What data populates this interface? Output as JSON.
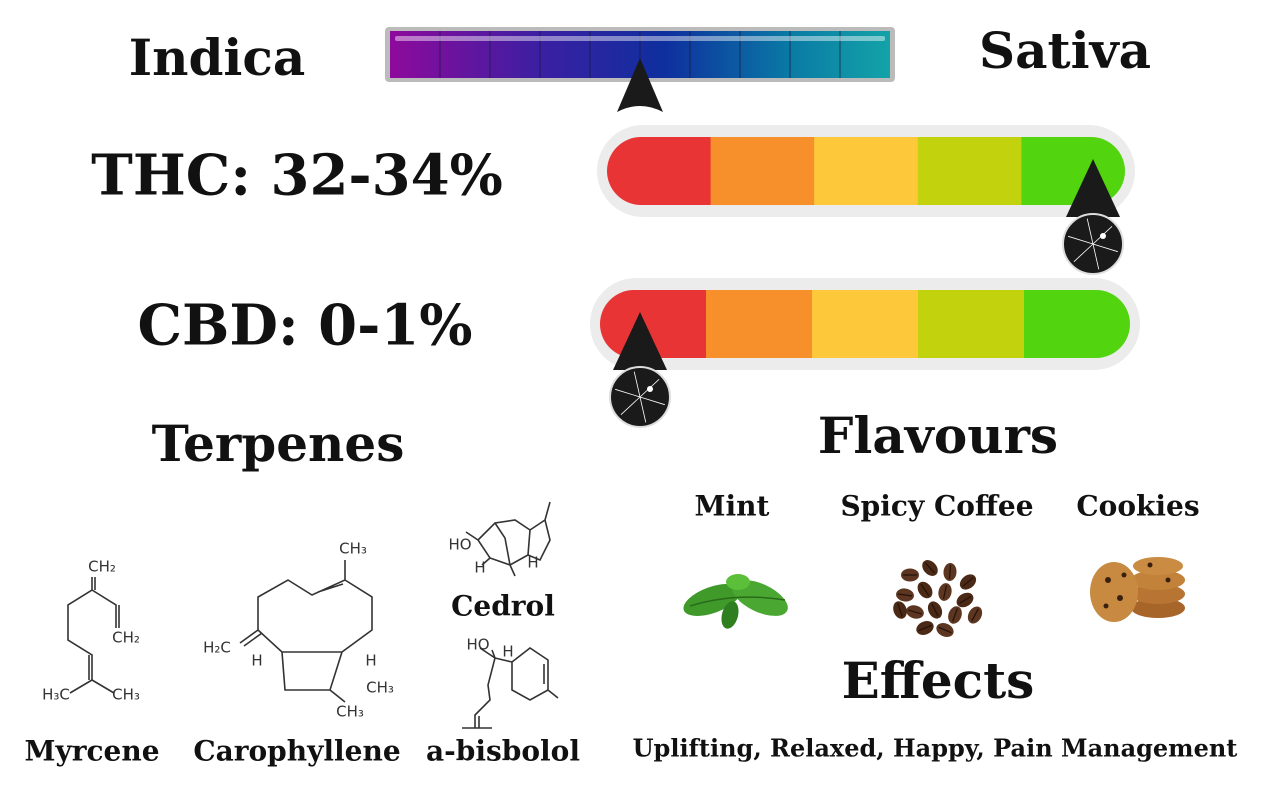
{
  "scale": {
    "left": "Indica",
    "right": "Sativa"
  },
  "potency": [
    {
      "label": "THC: 32-34%"
    },
    {
      "label": "CBD: 0-1%"
    }
  ],
  "terpenes": {
    "title": "Terpenes",
    "items": [
      {
        "name": "Myrcene",
        "atoms": [
          "CH₂",
          "CH₂",
          "H₃C",
          "CH₃"
        ]
      },
      {
        "name": "Carophyllene",
        "atoms": [
          "CH₃",
          "H₂C",
          "H",
          "H",
          "CH₃",
          "CH₃"
        ]
      },
      {
        "name": "Cedrol",
        "atoms": [
          "HO",
          "H",
          "H"
        ]
      },
      {
        "name": "a-bisbolol",
        "atoms": [
          "HO",
          "H"
        ]
      }
    ]
  },
  "flavours": {
    "title": "Flavours",
    "items": [
      "Mint",
      "Spicy Coffee",
      "Cookies"
    ]
  },
  "effects": {
    "title": "Effects",
    "text": "Uplifting, Relaxed, Happy, Pain Management"
  }
}
